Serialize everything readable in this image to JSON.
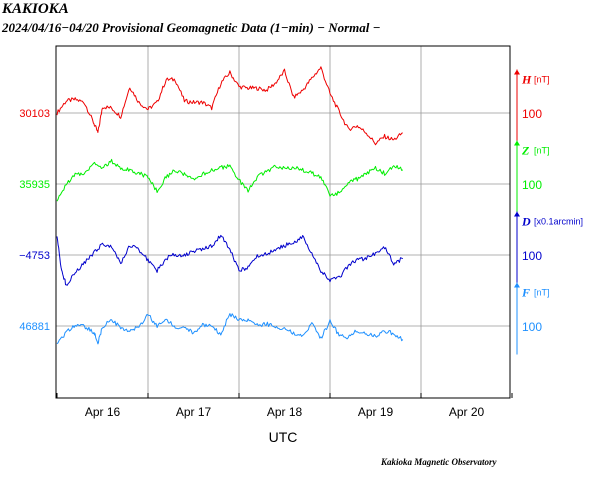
{
  "header": {
    "station": "KAKIOKA",
    "subtitle": "2024/04/16−04/20  Provisional Geomagnetic Data (1−min)  − Normal −"
  },
  "footer": {
    "credit": "Kakioka Magnetic Observatory"
  },
  "chart_data": {
    "type": "line",
    "title": "KAKIOKA",
    "subtitle": "2024/04/16−04/20  Provisional Geomagnetic Data (1−min)  − Normal −",
    "xlabel": "UTC",
    "x_ticks": [
      "Apr 16",
      "Apr 17",
      "Apr 18",
      "Apr 19",
      "Apr 20"
    ],
    "xlim_days": [
      16,
      21
    ],
    "grid": true,
    "series": [
      {
        "name": "H",
        "unit": "[nT]",
        "base": "30103",
        "scale": "100",
        "color": "#ee0000",
        "x_days": [
          16.0,
          16.1,
          16.2,
          16.3,
          16.4,
          16.45,
          16.5,
          16.6,
          16.7,
          16.8,
          16.9,
          17.0,
          17.1,
          17.2,
          17.3,
          17.4,
          17.5,
          17.6,
          17.7,
          17.8,
          17.9,
          18.0,
          18.1,
          18.2,
          18.3,
          18.4,
          18.5,
          18.6,
          18.7,
          18.8,
          18.9,
          19.0,
          19.1,
          19.2,
          19.3,
          19.4,
          19.5,
          19.6,
          19.7,
          19.8
        ],
        "values": [
          30103,
          30120,
          30122,
          30118,
          30090,
          30075,
          30112,
          30110,
          30098,
          30140,
          30118,
          30108,
          30118,
          30150,
          30150,
          30120,
          30118,
          30118,
          30110,
          30145,
          30160,
          30140,
          30138,
          30138,
          30135,
          30145,
          30162,
          30125,
          30135,
          30152,
          30167,
          30130,
          30105,
          30080,
          30085,
          30075,
          30060,
          30070,
          30065,
          30075
        ]
      },
      {
        "name": "Z",
        "unit": "[nT]",
        "base": "35935",
        "scale": "100",
        "color": "#00ee00",
        "x_days": [
          16.0,
          16.1,
          16.2,
          16.3,
          16.4,
          16.5,
          16.6,
          16.7,
          16.8,
          16.9,
          17.0,
          17.1,
          17.2,
          17.3,
          17.4,
          17.5,
          17.6,
          17.7,
          17.8,
          17.9,
          18.0,
          18.1,
          18.2,
          18.3,
          18.4,
          18.5,
          18.6,
          18.7,
          18.8,
          18.9,
          19.0,
          19.1,
          19.2,
          19.3,
          19.4,
          19.5,
          19.6,
          19.7,
          19.8
        ],
        "values": [
          35910,
          35935,
          35948,
          35950,
          35965,
          35958,
          35967,
          35958,
          35955,
          35950,
          35945,
          35925,
          35945,
          35955,
          35948,
          35940,
          35948,
          35955,
          35958,
          35960,
          35940,
          35925,
          35945,
          35952,
          35960,
          35958,
          35958,
          35955,
          35950,
          35945,
          35920,
          35922,
          35938,
          35942,
          35950,
          35958,
          35950,
          35960,
          35955
        ]
      },
      {
        "name": "D",
        "unit": "[x0.1arcmin]",
        "base": "−4753",
        "scale": "100",
        "color": "#0000cc",
        "x_days": [
          16.0,
          16.05,
          16.1,
          16.2,
          16.3,
          16.4,
          16.5,
          16.6,
          16.7,
          16.8,
          16.9,
          17.0,
          17.1,
          17.2,
          17.3,
          17.4,
          17.5,
          17.6,
          17.7,
          17.8,
          17.9,
          18.0,
          18.1,
          18.2,
          18.3,
          18.4,
          18.5,
          18.6,
          18.7,
          18.8,
          18.9,
          19.0,
          19.1,
          19.2,
          19.3,
          19.4,
          19.5,
          19.6,
          19.7,
          19.8
        ],
        "values": [
          -4725,
          -4775,
          -4795,
          -4778,
          -4765,
          -4750,
          -4738,
          -4742,
          -4765,
          -4740,
          -4745,
          -4760,
          -4775,
          -4758,
          -4752,
          -4753,
          -4748,
          -4745,
          -4740,
          -4725,
          -4745,
          -4775,
          -4770,
          -4755,
          -4752,
          -4745,
          -4740,
          -4735,
          -4728,
          -4750,
          -4775,
          -4790,
          -4785,
          -4768,
          -4760,
          -4758,
          -4750,
          -4742,
          -4765,
          -4758
        ]
      },
      {
        "name": "F",
        "unit": "[nT]",
        "base": "46881",
        "scale": "100",
        "color": "#1e90ff",
        "x_days": [
          16.0,
          16.1,
          16.2,
          16.3,
          16.4,
          16.45,
          16.5,
          16.6,
          16.7,
          16.8,
          16.9,
          17.0,
          17.1,
          17.2,
          17.3,
          17.4,
          17.5,
          17.6,
          17.7,
          17.8,
          17.9,
          18.0,
          18.1,
          18.2,
          18.3,
          18.4,
          18.5,
          18.6,
          18.7,
          18.8,
          18.9,
          19.0,
          19.1,
          19.2,
          19.3,
          19.4,
          19.5,
          19.6,
          19.7,
          19.8
        ],
        "values": [
          46855,
          46872,
          46882,
          46880,
          46873,
          46858,
          46880,
          46890,
          46878,
          46875,
          46880,
          46898,
          46880,
          46890,
          46880,
          46880,
          46870,
          46882,
          46880,
          46870,
          46898,
          46890,
          46888,
          46882,
          46884,
          46880,
          46878,
          46870,
          46868,
          46885,
          46864,
          46888,
          46868,
          46865,
          46875,
          46870,
          46866,
          46874,
          46870,
          46862
        ]
      }
    ]
  }
}
